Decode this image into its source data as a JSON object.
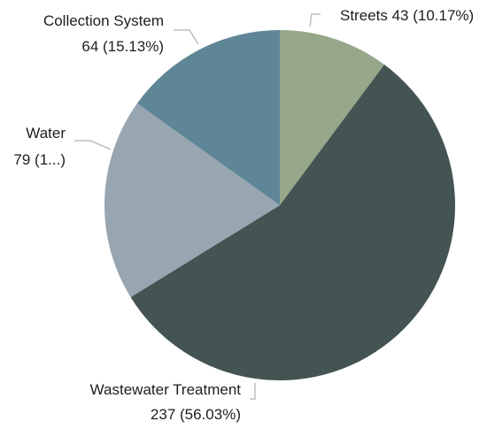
{
  "chart_data": {
    "type": "pie",
    "title": "",
    "slices": [
      {
        "name": "Streets",
        "value": 43,
        "percent_label": "(10.17%)",
        "color": "#97a78a"
      },
      {
        "name": "Wastewater Treatment",
        "value": 237,
        "percent_label": "(56.03%)",
        "color": "#435452"
      },
      {
        "name": "Water",
        "value": 79,
        "percent_label": "(1...)",
        "color": "#97a6b1"
      },
      {
        "name": "Collection System",
        "value": 64,
        "percent_label": "(15.13%)",
        "color": "#5f8696"
      }
    ],
    "labels": {
      "streets": "Streets 43 (10.17%)",
      "wastewater_line1": "Wastewater Treatment",
      "wastewater_line2": "237 (56.03%)",
      "water_line1": "Water",
      "water_line2": "79 (1...)",
      "collection_line1": "Collection System",
      "collection_line2": "64 (15.13%)"
    },
    "start_angle": "12 o'clock",
    "direction": "clockwise",
    "legend": "none"
  }
}
